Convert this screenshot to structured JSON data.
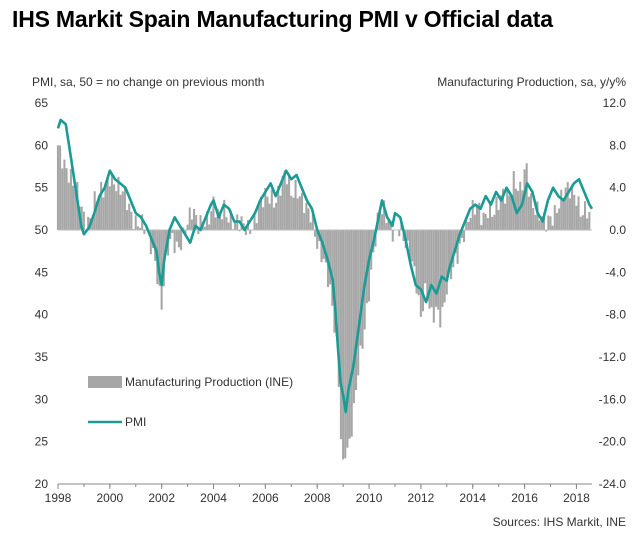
{
  "title": "IHS Markit Spain Manufacturing PMI v Official data",
  "source": "Sources: IHS Markit, INE",
  "colors": {
    "pmi": "#1a9c95",
    "bars": "#a6a6a6",
    "axis": "#888888"
  },
  "chart_data": {
    "type": "bar+line",
    "left_axis": {
      "label": "PMI, sa, 50 = no change on previous month",
      "min": 20,
      "max": 65,
      "ticks": [
        "20",
        "25",
        "30",
        "35",
        "40",
        "45",
        "50",
        "55",
        "60",
        "65"
      ]
    },
    "right_axis": {
      "label": "Manufacturing Production, sa, y/y%",
      "min": -24,
      "max": 12,
      "ticks": [
        "-24.0",
        "-20.0",
        "-16.0",
        "-12.0",
        "-8.0",
        "-4.0",
        "0.0",
        "4.0",
        "8.0",
        "12.0"
      ]
    },
    "x_axis": {
      "min": 1998,
      "max": 2018.6,
      "ticks": [
        "1998",
        "2000",
        "2002",
        "2004",
        "2006",
        "2008",
        "2010",
        "2012",
        "2014",
        "2016",
        "2018"
      ]
    },
    "legend": [
      {
        "name": "Manufacturing Production (INE)",
        "kind": "bar"
      },
      {
        "name": "PMI",
        "kind": "line"
      }
    ],
    "series": [
      {
        "name": "PMI",
        "axis": "left",
        "points": [
          [
            1998.0,
            62.0
          ],
          [
            1998.1,
            63.0
          ],
          [
            1998.3,
            62.5
          ],
          [
            1998.5,
            58.5
          ],
          [
            1998.7,
            54.5
          ],
          [
            1998.8,
            52.5
          ],
          [
            1998.9,
            50.5
          ],
          [
            1999.0,
            49.5
          ],
          [
            1999.2,
            50.3
          ],
          [
            1999.4,
            52.0
          ],
          [
            1999.6,
            54.0
          ],
          [
            1999.8,
            55.0
          ],
          [
            2000.0,
            57.0
          ],
          [
            2000.2,
            56.0
          ],
          [
            2000.4,
            55.5
          ],
          [
            2000.6,
            55.0
          ],
          [
            2000.8,
            53.5
          ],
          [
            2001.0,
            52.0
          ],
          [
            2001.2,
            51.5
          ],
          [
            2001.4,
            50.5
          ],
          [
            2001.6,
            49.0
          ],
          [
            2001.8,
            47.5
          ],
          [
            2001.9,
            45.0
          ],
          [
            2002.0,
            43.5
          ],
          [
            2002.1,
            46.5
          ],
          [
            2002.3,
            50.0
          ],
          [
            2002.5,
            51.5
          ],
          [
            2002.7,
            50.5
          ],
          [
            2002.9,
            49.5
          ],
          [
            2003.1,
            48.5
          ],
          [
            2003.3,
            50.5
          ],
          [
            2003.5,
            50.0
          ],
          [
            2003.7,
            51.5
          ],
          [
            2003.9,
            53.0
          ],
          [
            2004.0,
            53.5
          ],
          [
            2004.2,
            51.5
          ],
          [
            2004.4,
            53.0
          ],
          [
            2004.6,
            52.5
          ],
          [
            2004.8,
            51.0
          ],
          [
            2005.0,
            51.0
          ],
          [
            2005.2,
            50.0
          ],
          [
            2005.4,
            51.0
          ],
          [
            2005.6,
            52.0
          ],
          [
            2005.8,
            53.5
          ],
          [
            2006.0,
            54.5
          ],
          [
            2006.2,
            55.5
          ],
          [
            2006.4,
            54.0
          ],
          [
            2006.6,
            55.5
          ],
          [
            2006.8,
            57.0
          ],
          [
            2007.0,
            56.0
          ],
          [
            2007.2,
            56.5
          ],
          [
            2007.4,
            55.0
          ],
          [
            2007.6,
            53.5
          ],
          [
            2007.8,
            52.5
          ],
          [
            2008.0,
            50.0
          ],
          [
            2008.2,
            48.5
          ],
          [
            2008.4,
            46.5
          ],
          [
            2008.6,
            44.0
          ],
          [
            2008.7,
            40.5
          ],
          [
            2008.8,
            36.0
          ],
          [
            2008.9,
            32.0
          ],
          [
            2009.0,
            30.5
          ],
          [
            2009.1,
            28.5
          ],
          [
            2009.2,
            31.0
          ],
          [
            2009.4,
            34.0
          ],
          [
            2009.6,
            38.5
          ],
          [
            2009.8,
            43.0
          ],
          [
            2010.0,
            46.5
          ],
          [
            2010.2,
            49.0
          ],
          [
            2010.4,
            52.0
          ],
          [
            2010.5,
            53.5
          ],
          [
            2010.7,
            51.5
          ],
          [
            2010.9,
            50.5
          ],
          [
            2011.0,
            52.0
          ],
          [
            2011.2,
            51.5
          ],
          [
            2011.4,
            49.0
          ],
          [
            2011.6,
            46.0
          ],
          [
            2011.8,
            43.5
          ],
          [
            2012.0,
            43.0
          ],
          [
            2012.2,
            41.5
          ],
          [
            2012.4,
            43.5
          ],
          [
            2012.6,
            42.5
          ],
          [
            2012.8,
            44.5
          ],
          [
            2013.0,
            44.0
          ],
          [
            2013.1,
            45.5
          ],
          [
            2013.3,
            47.5
          ],
          [
            2013.5,
            49.5
          ],
          [
            2013.7,
            51.0
          ],
          [
            2013.9,
            52.5
          ],
          [
            2014.1,
            53.0
          ],
          [
            2014.3,
            52.5
          ],
          [
            2014.5,
            54.0
          ],
          [
            2014.7,
            53.0
          ],
          [
            2014.9,
            54.5
          ],
          [
            2015.1,
            53.5
          ],
          [
            2015.3,
            55.0
          ],
          [
            2015.5,
            54.0
          ],
          [
            2015.7,
            52.0
          ],
          [
            2015.9,
            53.0
          ],
          [
            2016.1,
            55.5
          ],
          [
            2016.3,
            54.5
          ],
          [
            2016.5,
            52.0
          ],
          [
            2016.7,
            51.0
          ],
          [
            2016.9,
            53.5
          ],
          [
            2017.1,
            55.0
          ],
          [
            2017.3,
            54.0
          ],
          [
            2017.5,
            53.5
          ],
          [
            2017.7,
            54.5
          ],
          [
            2017.9,
            55.5
          ],
          [
            2018.1,
            56.0
          ],
          [
            2018.3,
            54.5
          ],
          [
            2018.5,
            53.0
          ],
          [
            2018.6,
            52.5
          ]
        ]
      },
      {
        "name": "Manufacturing Production (INE)",
        "axis": "right",
        "step": 0.1,
        "points": [
          [
            1998.0,
            8.0
          ],
          [
            1998.2,
            7.0
          ],
          [
            1998.4,
            5.5
          ],
          [
            1998.6,
            4.0
          ],
          [
            1998.8,
            3.0
          ],
          [
            1999.0,
            1.5
          ],
          [
            1999.2,
            1.0
          ],
          [
            1999.4,
            2.5
          ],
          [
            1999.6,
            3.0
          ],
          [
            1999.8,
            4.0
          ],
          [
            2000.0,
            5.5
          ],
          [
            2000.2,
            4.5
          ],
          [
            2000.4,
            3.5
          ],
          [
            2000.6,
            3.0
          ],
          [
            2000.8,
            2.0
          ],
          [
            2001.0,
            1.0
          ],
          [
            2001.2,
            0.5
          ],
          [
            2001.4,
            -0.5
          ],
          [
            2001.6,
            -1.5
          ],
          [
            2001.8,
            -3.0
          ],
          [
            2001.9,
            -5.5
          ],
          [
            2002.0,
            -7.0
          ],
          [
            2002.2,
            -2.5
          ],
          [
            2002.4,
            -1.0
          ],
          [
            2002.6,
            -1.5
          ],
          [
            2002.8,
            -0.5
          ],
          [
            2003.0,
            0.5
          ],
          [
            2003.2,
            1.5
          ],
          [
            2003.4,
            0.5
          ],
          [
            2003.6,
            1.5
          ],
          [
            2003.8,
            1.0
          ],
          [
            2004.0,
            2.0
          ],
          [
            2004.2,
            1.0
          ],
          [
            2004.4,
            2.5
          ],
          [
            2004.6,
            1.5
          ],
          [
            2004.8,
            0.5
          ],
          [
            2005.0,
            0.3
          ],
          [
            2005.2,
            0.5
          ],
          [
            2005.4,
            0.5
          ],
          [
            2005.6,
            1.0
          ],
          [
            2005.8,
            2.0
          ],
          [
            2006.0,
            3.0
          ],
          [
            2006.2,
            3.5
          ],
          [
            2006.4,
            3.0
          ],
          [
            2006.6,
            4.0
          ],
          [
            2006.8,
            5.0
          ],
          [
            2007.0,
            3.5
          ],
          [
            2007.2,
            4.5
          ],
          [
            2007.4,
            3.0
          ],
          [
            2007.6,
            1.5
          ],
          [
            2007.8,
            1.0
          ],
          [
            2008.0,
            -1.0
          ],
          [
            2008.2,
            -2.0
          ],
          [
            2008.4,
            -4.5
          ],
          [
            2008.6,
            -8.0
          ],
          [
            2008.8,
            -12.0
          ],
          [
            2008.9,
            -18.5
          ],
          [
            2009.0,
            -22.0
          ],
          [
            2009.1,
            -20.0
          ],
          [
            2009.2,
            -21.0
          ],
          [
            2009.4,
            -18.0
          ],
          [
            2009.6,
            -13.0
          ],
          [
            2009.8,
            -9.5
          ],
          [
            2010.0,
            -5.5
          ],
          [
            2010.2,
            -2.0
          ],
          [
            2010.4,
            1.5
          ],
          [
            2010.6,
            2.0
          ],
          [
            2010.8,
            1.0
          ],
          [
            2011.0,
            -0.5
          ],
          [
            2011.2,
            -0.2
          ],
          [
            2011.4,
            -1.5
          ],
          [
            2011.6,
            -2.0
          ],
          [
            2011.8,
            -4.0
          ],
          [
            2011.9,
            -6.5
          ],
          [
            2012.0,
            -8.5
          ],
          [
            2012.2,
            -6.0
          ],
          [
            2012.4,
            -8.0
          ],
          [
            2012.6,
            -7.0
          ],
          [
            2012.8,
            -8.5
          ],
          [
            2013.0,
            -6.0
          ],
          [
            2013.2,
            -4.0
          ],
          [
            2013.4,
            -2.0
          ],
          [
            2013.6,
            -0.5
          ],
          [
            2013.8,
            0.5
          ],
          [
            2014.0,
            1.5
          ],
          [
            2014.2,
            2.5
          ],
          [
            2014.4,
            1.5
          ],
          [
            2014.6,
            2.0
          ],
          [
            2014.8,
            1.0
          ],
          [
            2015.0,
            2.5
          ],
          [
            2015.2,
            4.0
          ],
          [
            2015.4,
            3.5
          ],
          [
            2015.6,
            4.5
          ],
          [
            2015.8,
            3.0
          ],
          [
            2016.0,
            5.5
          ],
          [
            2016.1,
            6.5
          ],
          [
            2016.2,
            3.5
          ],
          [
            2016.4,
            2.0
          ],
          [
            2016.6,
            1.0
          ],
          [
            2016.8,
            0.5
          ],
          [
            2017.0,
            1.5
          ],
          [
            2017.2,
            2.0
          ],
          [
            2017.4,
            2.5
          ],
          [
            2017.6,
            3.5
          ],
          [
            2017.8,
            4.0
          ],
          [
            2018.0,
            3.5
          ],
          [
            2018.2,
            1.5
          ],
          [
            2018.4,
            1.5
          ],
          [
            2018.5,
            1.0
          ]
        ]
      }
    ]
  }
}
